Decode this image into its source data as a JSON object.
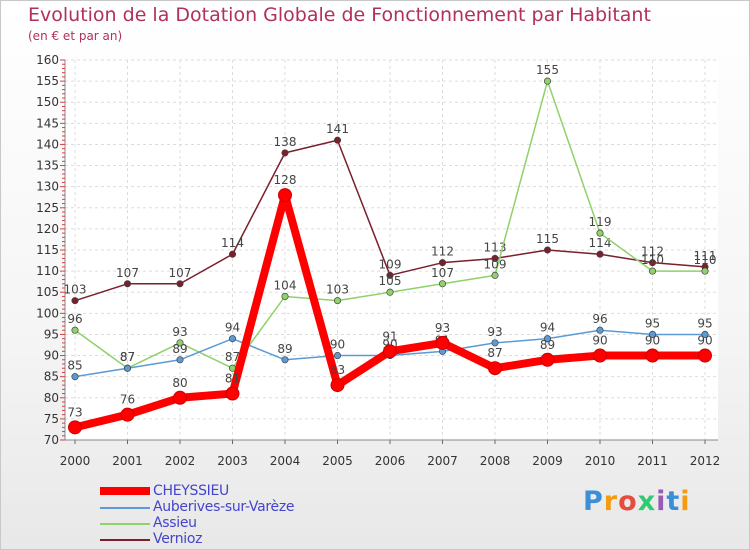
{
  "chart_data": {
    "type": "line",
    "title": "Evolution de la Dotation Globale de Fonctionnement par Habitant",
    "subtitle": "(en € et par an)",
    "xlabel": "",
    "ylabel": "",
    "categories": [
      "2000",
      "2001",
      "2002",
      "2003",
      "2004",
      "2005",
      "2006",
      "2007",
      "2008",
      "2009",
      "2010",
      "2011",
      "2012"
    ],
    "ylim": [
      70,
      160
    ],
    "yticks": [
      70,
      75,
      80,
      85,
      90,
      95,
      100,
      105,
      110,
      115,
      120,
      125,
      130,
      135,
      140,
      145,
      150,
      155,
      160
    ],
    "grid": true,
    "legend_position": "bottom-left",
    "series": [
      {
        "name": "Vernioz",
        "color": "#7a1f2b",
        "values": [
          103,
          107,
          107,
          114,
          138,
          141,
          109,
          112,
          113,
          115,
          114,
          112,
          111
        ]
      },
      {
        "name": "Assieu",
        "color": "#8fd16a",
        "values": [
          96,
          87,
          93,
          87,
          104,
          103,
          105,
          107,
          109,
          155,
          119,
          110,
          110
        ]
      },
      {
        "name": "Auberives-sur-Varèze",
        "color": "#5b9bd5",
        "values": [
          85,
          87,
          89,
          94,
          89,
          90,
          90,
          91,
          93,
          94,
          96,
          95,
          95
        ]
      },
      {
        "name": "CHEYSSIEU",
        "color": "#ff0000",
        "values": [
          73,
          76,
          80,
          81,
          128,
          83,
          91,
          93,
          87,
          89,
          90,
          90,
          90
        ]
      }
    ]
  },
  "legend": {
    "items": [
      {
        "name": "CHEYSSIEU",
        "color": "#ff0000"
      },
      {
        "name": "Auberives-sur-Varèze",
        "color": "#5b9bd5"
      },
      {
        "name": "Assieu",
        "color": "#8fd16a"
      },
      {
        "name": "Vernioz",
        "color": "#7a1f2b"
      }
    ]
  },
  "logo": {
    "text": "Proxiti",
    "letters": [
      "P",
      "r",
      "o",
      "x",
      "i",
      "t",
      "i"
    ],
    "colors": [
      "#3a8fd8",
      "#f39c12",
      "#e74c3c",
      "#2ecc71",
      "#9b59b6",
      "#3a8fd8",
      "#f39c12"
    ]
  }
}
